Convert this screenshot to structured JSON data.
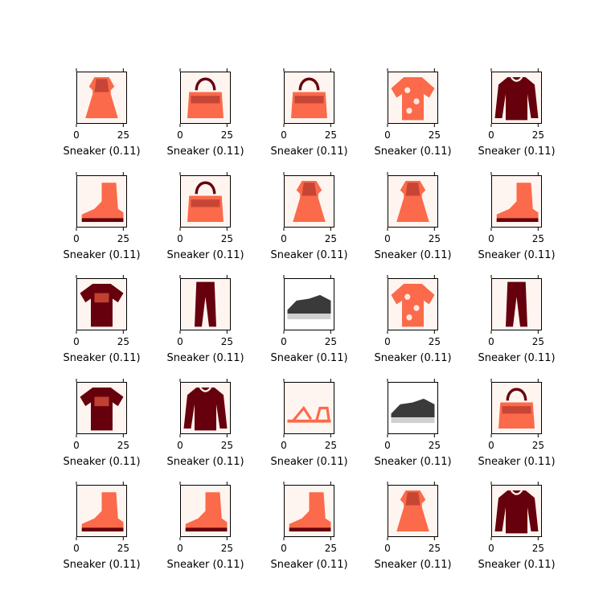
{
  "chart_data": {
    "type": "image_grid",
    "rows": 5,
    "cols": 5,
    "colormap": "Reds",
    "colors": {
      "cmap_light": "#fff5f0",
      "cmap_mid": "#fb6a4a",
      "cmap_dark": "#67000d",
      "neutral_dark": "#3a3a3a",
      "neutral_light": "#ffffff"
    },
    "xticks": [
      0,
      25
    ],
    "xlim": [
      0,
      27
    ],
    "panels": [
      {
        "icon": "dress-icon",
        "tint": "red",
        "caption": "Sneaker (0.11)"
      },
      {
        "icon": "bag-icon",
        "tint": "red",
        "caption": "Sneaker (0.11)"
      },
      {
        "icon": "bag-icon",
        "tint": "red",
        "caption": "Sneaker (0.11)"
      },
      {
        "icon": "shirt-icon",
        "tint": "red",
        "caption": "Sneaker (0.11)"
      },
      {
        "icon": "pullover-icon",
        "tint": "red",
        "caption": "Sneaker (0.11)"
      },
      {
        "icon": "ankle-boot-icon",
        "tint": "red",
        "caption": "Sneaker (0.11)"
      },
      {
        "icon": "bag-icon",
        "tint": "red",
        "caption": "Sneaker (0.11)"
      },
      {
        "icon": "dress-icon",
        "tint": "red",
        "caption": "Sneaker (0.11)"
      },
      {
        "icon": "dress-icon",
        "tint": "red",
        "caption": "Sneaker (0.11)"
      },
      {
        "icon": "ankle-boot-icon",
        "tint": "red",
        "caption": "Sneaker (0.11)"
      },
      {
        "icon": "tshirt-icon",
        "tint": "red",
        "caption": "Sneaker (0.11)"
      },
      {
        "icon": "trouser-icon",
        "tint": "red",
        "caption": "Sneaker (0.11)"
      },
      {
        "icon": "sneaker-icon",
        "tint": "gray",
        "caption": "Sneaker (0.11)"
      },
      {
        "icon": "shirt-icon",
        "tint": "red",
        "caption": "Sneaker (0.11)"
      },
      {
        "icon": "trouser-icon",
        "tint": "red",
        "caption": "Sneaker (0.11)"
      },
      {
        "icon": "tshirt-icon",
        "tint": "red",
        "caption": "Sneaker (0.11)"
      },
      {
        "icon": "pullover-icon",
        "tint": "red",
        "caption": "Sneaker (0.11)"
      },
      {
        "icon": "sandal-icon",
        "tint": "red",
        "caption": "Sneaker (0.11)"
      },
      {
        "icon": "sneaker-icon",
        "tint": "gray",
        "caption": "Sneaker (0.11)"
      },
      {
        "icon": "bag-icon",
        "tint": "red",
        "caption": "Sneaker (0.11)"
      },
      {
        "icon": "ankle-boot-icon",
        "tint": "red",
        "caption": "Sneaker (0.11)"
      },
      {
        "icon": "ankle-boot-icon",
        "tint": "red",
        "caption": "Sneaker (0.11)"
      },
      {
        "icon": "ankle-boot-icon",
        "tint": "red",
        "caption": "Sneaker (0.11)"
      },
      {
        "icon": "dress-icon",
        "tint": "red",
        "caption": "Sneaker (0.11)"
      },
      {
        "icon": "pullover-icon",
        "tint": "red",
        "caption": "Sneaker (0.11)"
      }
    ]
  }
}
